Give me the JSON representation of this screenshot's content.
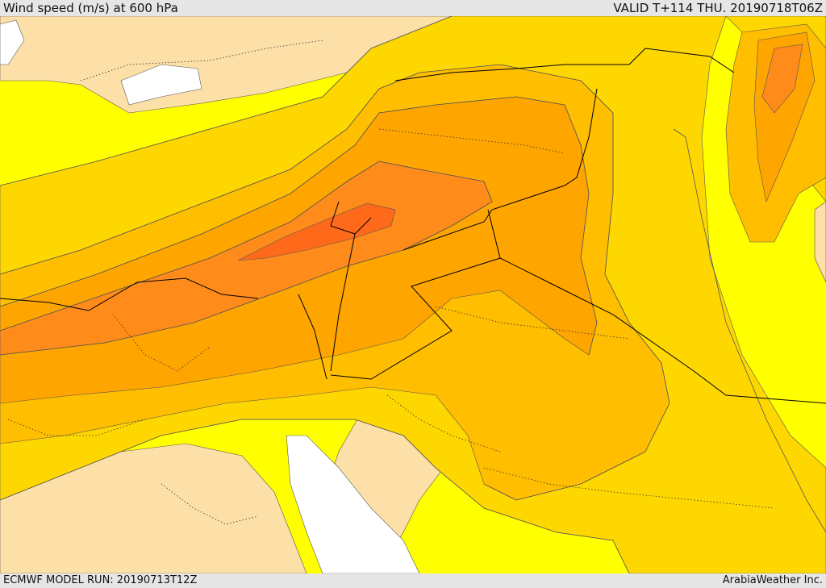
{
  "header": {
    "title": "Wind speed (m/s) at 600 hPa",
    "valid_time": "VALID T+114 THU. 20190718T06Z"
  },
  "footer": {
    "model_run": "ECMWF MODEL RUN: 20190713T12Z",
    "credit": "ArabiaWeather Inc."
  },
  "colors": {
    "background_fill": "#ffff00",
    "light_fill": "#fde0a8",
    "level_1": "#ffd700",
    "level_2": "#ffbe00",
    "level_3": "#ffa500",
    "level_4": "#ff8c1a",
    "level_5": "#ff6a1a",
    "sea": "#ffffff",
    "border_line": "#000000",
    "contour_line": "#555555"
  }
}
